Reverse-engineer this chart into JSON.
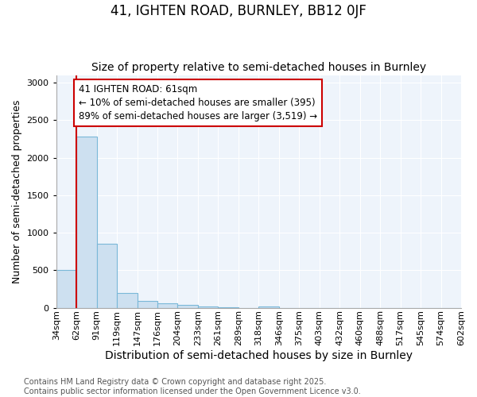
{
  "title": "41, IGHTEN ROAD, BURNLEY, BB12 0JF",
  "subtitle": "Size of property relative to semi-detached houses in Burnley",
  "xlabel": "Distribution of semi-detached houses by size in Burnley",
  "ylabel": "Number of semi-detached properties",
  "bins": [
    "34sqm",
    "62sqm",
    "91sqm",
    "119sqm",
    "147sqm",
    "176sqm",
    "204sqm",
    "233sqm",
    "261sqm",
    "289sqm",
    "318sqm",
    "346sqm",
    "375sqm",
    "403sqm",
    "432sqm",
    "460sqm",
    "488sqm",
    "517sqm",
    "545sqm",
    "574sqm",
    "602sqm"
  ],
  "bar_values": [
    500,
    2280,
    850,
    200,
    90,
    55,
    35,
    20,
    8,
    0,
    15,
    0,
    0,
    0,
    0,
    0,
    0,
    0,
    0,
    0
  ],
  "bar_color": "#cde0f0",
  "bar_edge_color": "#7ab8d8",
  "bg_color": "#eef4fb",
  "grid_color": "#ffffff",
  "vline_color": "#cc0000",
  "annotation_text": "41 IGHTEN ROAD: 61sqm\n← 10% of semi-detached houses are smaller (395)\n89% of semi-detached houses are larger (3,519) →",
  "annotation_box_color": "white",
  "annotation_box_edge": "#cc0000",
  "ylim": [
    0,
    3100
  ],
  "yticks": [
    0,
    500,
    1000,
    1500,
    2000,
    2500,
    3000
  ],
  "footer": "Contains HM Land Registry data © Crown copyright and database right 2025.\nContains public sector information licensed under the Open Government Licence v3.0.",
  "title_fontsize": 12,
  "subtitle_fontsize": 10,
  "xlabel_fontsize": 10,
  "ylabel_fontsize": 9,
  "tick_fontsize": 8,
  "footer_fontsize": 7,
  "vline_bin_index": 1
}
